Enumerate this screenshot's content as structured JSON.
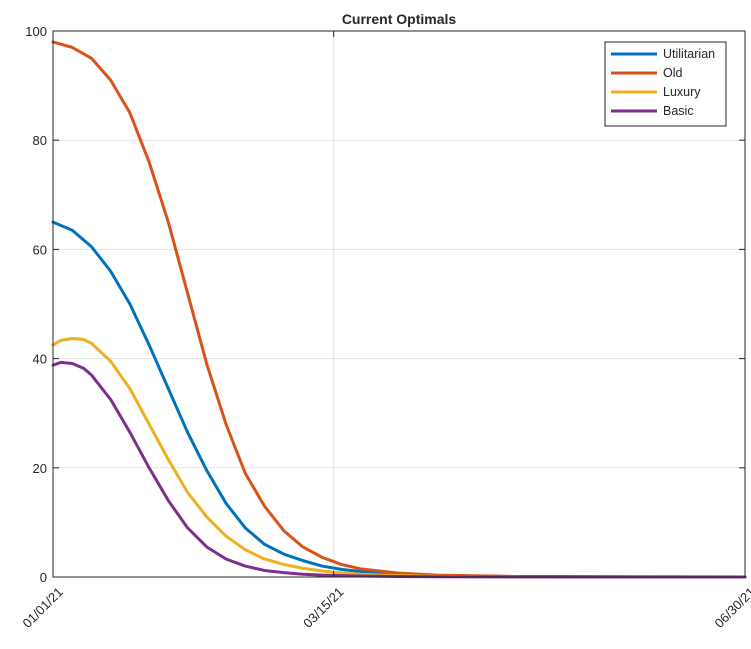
{
  "chart_data": {
    "type": "line",
    "title": "Current Optimals",
    "xlabel": "",
    "ylabel": "",
    "x_ticks": [
      "01/01/21",
      "03/15/21",
      "06/30/21"
    ],
    "x_tick_days": [
      0,
      73,
      180
    ],
    "xlim_days": [
      0,
      180
    ],
    "ylim": [
      0,
      100
    ],
    "y_ticks": [
      0,
      20,
      40,
      60,
      80,
      100
    ],
    "grid": true,
    "legend_position": "top-right",
    "series": [
      {
        "name": "Utilitarian",
        "color": "#0072BD",
        "points": [
          [
            0,
            65
          ],
          [
            5,
            63.5
          ],
          [
            10,
            60.5
          ],
          [
            15,
            56
          ],
          [
            20,
            50
          ],
          [
            25,
            42.5
          ],
          [
            30,
            34.5
          ],
          [
            35,
            26.5
          ],
          [
            40,
            19.5
          ],
          [
            45,
            13.5
          ],
          [
            50,
            9
          ],
          [
            55,
            6
          ],
          [
            60,
            4.2
          ],
          [
            65,
            3
          ],
          [
            70,
            2
          ],
          [
            75,
            1.4
          ],
          [
            80,
            1
          ],
          [
            90,
            0.5
          ],
          [
            100,
            0.25
          ],
          [
            120,
            0.08
          ],
          [
            150,
            0.02
          ],
          [
            180,
            0.01
          ]
        ]
      },
      {
        "name": "Old",
        "color": "#D95319",
        "points": [
          [
            0,
            98
          ],
          [
            5,
            97
          ],
          [
            10,
            95
          ],
          [
            15,
            91
          ],
          [
            20,
            85
          ],
          [
            25,
            76
          ],
          [
            30,
            65
          ],
          [
            35,
            52
          ],
          [
            40,
            39
          ],
          [
            45,
            28
          ],
          [
            50,
            19
          ],
          [
            55,
            13
          ],
          [
            60,
            8.5
          ],
          [
            65,
            5.5
          ],
          [
            70,
            3.6
          ],
          [
            75,
            2.3
          ],
          [
            80,
            1.5
          ],
          [
            90,
            0.7
          ],
          [
            100,
            0.35
          ],
          [
            120,
            0.1
          ],
          [
            150,
            0.03
          ],
          [
            180,
            0.01
          ]
        ]
      },
      {
        "name": "Luxury",
        "color": "#EDB120",
        "points": [
          [
            0,
            42.5
          ],
          [
            2,
            43.3
          ],
          [
            5,
            43.7
          ],
          [
            8,
            43.5
          ],
          [
            10,
            42.8
          ],
          [
            15,
            39.5
          ],
          [
            20,
            34.5
          ],
          [
            25,
            28
          ],
          [
            30,
            21.5
          ],
          [
            35,
            15.5
          ],
          [
            40,
            11
          ],
          [
            45,
            7.5
          ],
          [
            50,
            5
          ],
          [
            55,
            3.3
          ],
          [
            60,
            2.3
          ],
          [
            65,
            1.6
          ],
          [
            70,
            1.1
          ],
          [
            75,
            0.75
          ],
          [
            80,
            0.5
          ],
          [
            90,
            0.25
          ],
          [
            100,
            0.12
          ],
          [
            120,
            0.04
          ],
          [
            150,
            0.01
          ],
          [
            180,
            0.005
          ]
        ]
      },
      {
        "name": "Basic",
        "color": "#7E2F8E",
        "points": [
          [
            0,
            38.8
          ],
          [
            2,
            39.3
          ],
          [
            5,
            39.1
          ],
          [
            8,
            38.2
          ],
          [
            10,
            37
          ],
          [
            15,
            32.5
          ],
          [
            20,
            26.5
          ],
          [
            25,
            20
          ],
          [
            30,
            14
          ],
          [
            35,
            9
          ],
          [
            40,
            5.5
          ],
          [
            45,
            3.3
          ],
          [
            50,
            2
          ],
          [
            55,
            1.2
          ],
          [
            60,
            0.8
          ],
          [
            65,
            0.5
          ],
          [
            70,
            0.35
          ],
          [
            75,
            0.25
          ],
          [
            80,
            0.18
          ],
          [
            90,
            0.1
          ],
          [
            100,
            0.05
          ],
          [
            120,
            0.02
          ],
          [
            150,
            0.005
          ],
          [
            180,
            0.002
          ]
        ]
      }
    ]
  }
}
